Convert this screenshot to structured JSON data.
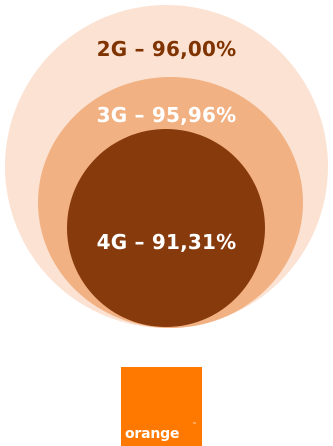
{
  "diagram": {
    "rings": [
      {
        "label": "2G – 96,00%",
        "fill": "#fbe2d2",
        "text_color": "#7f3300"
      },
      {
        "label": "3G – 95,96%",
        "fill": "#f1b183",
        "text_color": "#ffffff"
      },
      {
        "label": "4G – 91,31%",
        "fill": "#873a0c",
        "text_color": "#ffffff"
      }
    ]
  },
  "logo": {
    "text": "orange",
    "mark": "™",
    "color": "#ff7900"
  }
}
